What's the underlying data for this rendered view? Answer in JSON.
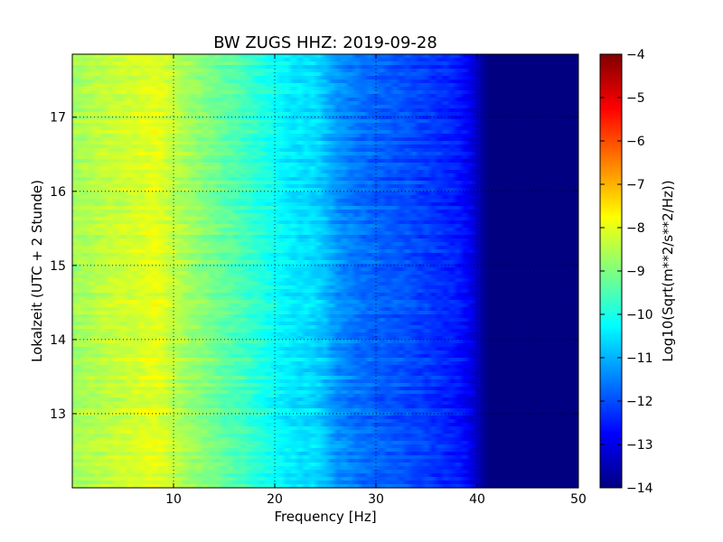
{
  "chart_data": {
    "type": "heatmap",
    "title": "BW ZUGS HHZ: 2019-09-28",
    "xlabel": "Frequency [Hz]",
    "ylabel": "Lokalzeit (UTC + 2 Stunde)",
    "colorbar_label": "Log10(Sqrt(m**2/s**2/Hz))",
    "colormap": "jet",
    "xlim": [
      0,
      50
    ],
    "ylim": [
      17.85,
      12.0
    ],
    "x_ticks": [
      10,
      20,
      30,
      40,
      50
    ],
    "y_ticks": [
      13,
      14,
      15,
      16,
      17
    ],
    "clim": [
      -14,
      -4
    ],
    "colorbar_ticks": [
      -4,
      -5,
      -6,
      -7,
      -8,
      -9,
      -10,
      -11,
      -12,
      -13,
      -14
    ],
    "grid": true,
    "spectrum_profile": {
      "frequency_hz": [
        0,
        3,
        6,
        8,
        9,
        10,
        12,
        15,
        18,
        20,
        22,
        24,
        25,
        26,
        28,
        30,
        33,
        35,
        37,
        38,
        39,
        40,
        40.5,
        41,
        50
      ],
      "log10_amplitude": [
        -8.7,
        -8.4,
        -8.2,
        -8.0,
        -8.1,
        -8.4,
        -8.8,
        -9.3,
        -9.8,
        -10.2,
        -10.5,
        -10.6,
        -10.9,
        -11.3,
        -11.6,
        -11.8,
        -12.0,
        -12.2,
        -12.4,
        -12.5,
        -12.8,
        -13.3,
        -13.7,
        -14.0,
        -14.0
      ]
    }
  }
}
